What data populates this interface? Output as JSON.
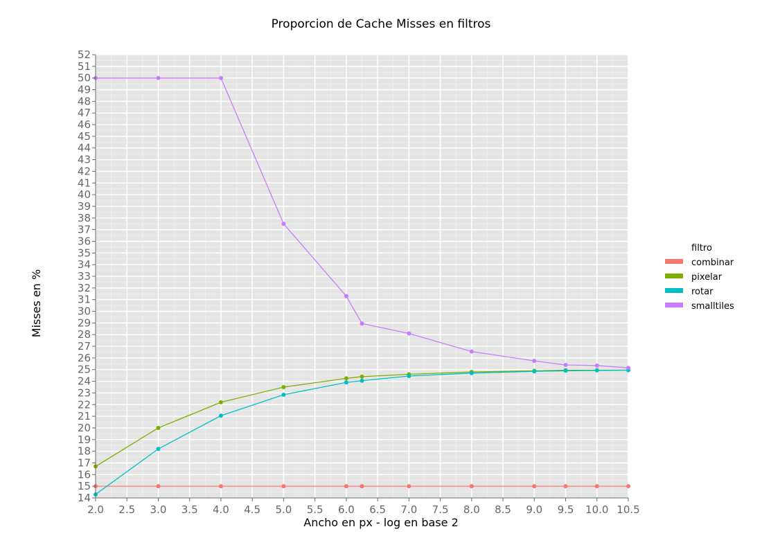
{
  "chart_data": {
    "type": "line",
    "title": "Proporcion de Cache Misses en filtros",
    "xlabel": "Ancho en px - log en base 2",
    "ylabel": "Misses en %",
    "xlim": [
      2.0,
      10.5
    ],
    "ylim": [
      14,
      52
    ],
    "x_ticks": [
      "2.0",
      "2.5",
      "3.0",
      "3.5",
      "4.0",
      "4.5",
      "5.0",
      "5.5",
      "6.0",
      "6.5",
      "7.0",
      "7.5",
      "8.0",
      "8.5",
      "9.0",
      "9.5",
      "10.0",
      "10.5"
    ],
    "y_ticks": [
      "14",
      "15",
      "16",
      "17",
      "18",
      "19",
      "20",
      "21",
      "22",
      "23",
      "24",
      "25",
      "26",
      "27",
      "28",
      "29",
      "30",
      "31",
      "32",
      "33",
      "34",
      "35",
      "36",
      "37",
      "38",
      "39",
      "40",
      "41",
      "42",
      "43",
      "44",
      "45",
      "46",
      "47",
      "48",
      "49",
      "50",
      "51",
      "52"
    ],
    "grid": true,
    "legend": {
      "title": "filtro",
      "placement": "right"
    },
    "series": [
      {
        "name": "combinar",
        "color": "#f8766d",
        "x": [
          2.0,
          3.0,
          4.0,
          5.0,
          6.0,
          6.25,
          7.0,
          8.0,
          9.0,
          9.5,
          10.0,
          10.5
        ],
        "y": [
          15.0,
          15.0,
          15.0,
          15.0,
          15.0,
          15.0,
          15.0,
          15.0,
          15.0,
          15.0,
          15.0,
          15.0
        ]
      },
      {
        "name": "pixelar",
        "color": "#7cae00",
        "x": [
          2.0,
          3.0,
          4.0,
          5.0,
          6.0,
          6.25,
          7.0,
          8.0,
          9.0,
          9.5,
          10.0,
          10.5
        ],
        "y": [
          16.7,
          20.0,
          22.2,
          23.5,
          24.25,
          24.4,
          24.6,
          24.8,
          24.9,
          24.95,
          24.95,
          24.97
        ]
      },
      {
        "name": "rotar",
        "color": "#00bfc4",
        "x": [
          2.0,
          3.0,
          4.0,
          5.0,
          6.0,
          6.25,
          7.0,
          8.0,
          9.0,
          9.5,
          10.0,
          10.5
        ],
        "y": [
          14.3,
          18.2,
          21.05,
          22.85,
          23.9,
          24.05,
          24.45,
          24.7,
          24.85,
          24.9,
          24.93,
          24.95
        ]
      },
      {
        "name": "smalltiles",
        "color": "#c77cff",
        "x": [
          2.0,
          3.0,
          4.0,
          5.0,
          6.0,
          6.25,
          7.0,
          8.0,
          9.0,
          9.5,
          10.0,
          10.5
        ],
        "y": [
          50.0,
          50.0,
          50.0,
          37.5,
          31.3,
          28.95,
          28.1,
          26.55,
          25.75,
          25.4,
          25.35,
          25.15
        ]
      }
    ]
  }
}
